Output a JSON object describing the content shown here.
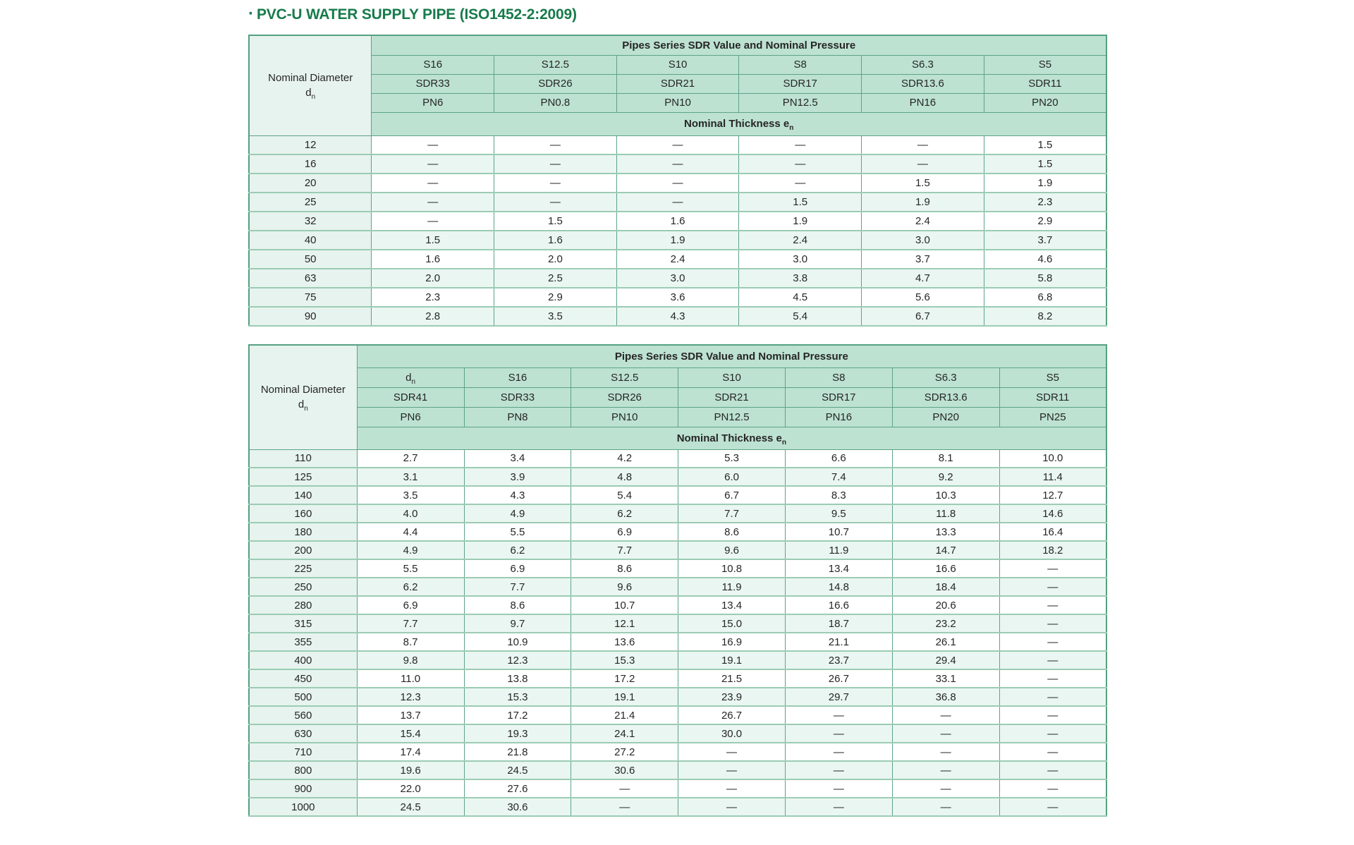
{
  "title": {
    "bullet": "·",
    "text": "PVC-U WATER SUPPLY PIPE (ISO1452-2:2009)"
  },
  "colors": {
    "title_green": "#177b4b",
    "header_bg": "#bde2d1",
    "left_col_bg": "#e7f3ee",
    "alt_row_bg": "#eaf6f1",
    "border_green": "#5ea389"
  },
  "tables": [
    {
      "name": "pipe-table-small-diameters",
      "span_header": "Pipes Series SDR Value and Nominal Pressure",
      "left_header": {
        "line1": "Nominal Diameter",
        "base": "d",
        "sub": "n"
      },
      "thickness_header": {
        "base": "Nominal Thickness e",
        "sub": "n"
      },
      "series": [
        "S16",
        "S12.5",
        "S10",
        "S8",
        "S6.3",
        "S5"
      ],
      "sdr": [
        "SDR33",
        "SDR26",
        "SDR21",
        "SDR17",
        "SDR13.6",
        "SDR11"
      ],
      "pn": [
        "PN6",
        "PN0.8",
        "PN10",
        "PN12.5",
        "PN16",
        "PN20"
      ],
      "rows": [
        {
          "d": "12",
          "v": [
            "—",
            "—",
            "—",
            "—",
            "—",
            "1.5"
          ]
        },
        {
          "d": "16",
          "v": [
            "—",
            "—",
            "—",
            "—",
            "—",
            "1.5"
          ]
        },
        {
          "d": "20",
          "v": [
            "—",
            "—",
            "—",
            "—",
            "1.5",
            "1.9"
          ]
        },
        {
          "d": "25",
          "v": [
            "—",
            "—",
            "—",
            "1.5",
            "1.9",
            "2.3"
          ]
        },
        {
          "d": "32",
          "v": [
            "—",
            "1.5",
            "1.6",
            "1.9",
            "2.4",
            "2.9"
          ]
        },
        {
          "d": "40",
          "v": [
            "1.5",
            "1.6",
            "1.9",
            "2.4",
            "3.0",
            "3.7"
          ]
        },
        {
          "d": "50",
          "v": [
            "1.6",
            "2.0",
            "2.4",
            "3.0",
            "3.7",
            "4.6"
          ]
        },
        {
          "d": "63",
          "v": [
            "2.0",
            "2.5",
            "3.0",
            "3.8",
            "4.7",
            "5.8"
          ]
        },
        {
          "d": "75",
          "v": [
            "2.3",
            "2.9",
            "3.6",
            "4.5",
            "5.6",
            "6.8"
          ]
        },
        {
          "d": "90",
          "v": [
            "2.8",
            "3.5",
            "4.3",
            "5.4",
            "6.7",
            "8.2"
          ]
        }
      ]
    },
    {
      "name": "pipe-table-large-diameters",
      "span_header": "Pipes Series SDR Value and Nominal Pressure",
      "left_header": {
        "line1": "Nominal Diameter",
        "base": "d",
        "sub": "n"
      },
      "thickness_header": {
        "base": "Nominal Thickness e",
        "sub": "n"
      },
      "series": [
        {
          "base": "d",
          "sub": "n"
        },
        "S16",
        "S12.5",
        "S10",
        "S8",
        "S6.3",
        "S5"
      ],
      "sdr": [
        "SDR41",
        "SDR33",
        "SDR26",
        "SDR21",
        "SDR17",
        "SDR13.6",
        "SDR11"
      ],
      "pn": [
        "PN6",
        "PN8",
        "PN10",
        "PN12.5",
        "PN16",
        "PN20",
        "PN25"
      ],
      "rows": [
        {
          "d": "110",
          "v": [
            "2.7",
            "3.4",
            "4.2",
            "5.3",
            "6.6",
            "8.1",
            "10.0"
          ]
        },
        {
          "d": "125",
          "v": [
            "3.1",
            "3.9",
            "4.8",
            "6.0",
            "7.4",
            "9.2",
            "11.4"
          ]
        },
        {
          "d": "140",
          "v": [
            "3.5",
            "4.3",
            "5.4",
            "6.7",
            "8.3",
            "10.3",
            "12.7"
          ]
        },
        {
          "d": "160",
          "v": [
            "4.0",
            "4.9",
            "6.2",
            "7.7",
            "9.5",
            "11.8",
            "14.6"
          ]
        },
        {
          "d": "180",
          "v": [
            "4.4",
            "5.5",
            "6.9",
            "8.6",
            "10.7",
            "13.3",
            "16.4"
          ]
        },
        {
          "d": "200",
          "v": [
            "4.9",
            "6.2",
            "7.7",
            "9.6",
            "11.9",
            "14.7",
            "18.2"
          ]
        },
        {
          "d": "225",
          "v": [
            "5.5",
            "6.9",
            "8.6",
            "10.8",
            "13.4",
            "16.6",
            "—"
          ]
        },
        {
          "d": "250",
          "v": [
            "6.2",
            "7.7",
            "9.6",
            "11.9",
            "14.8",
            "18.4",
            "—"
          ]
        },
        {
          "d": "280",
          "v": [
            "6.9",
            "8.6",
            "10.7",
            "13.4",
            "16.6",
            "20.6",
            "—"
          ]
        },
        {
          "d": "315",
          "v": [
            "7.7",
            "9.7",
            "12.1",
            "15.0",
            "18.7",
            "23.2",
            "—"
          ]
        },
        {
          "d": "355",
          "v": [
            "8.7",
            "10.9",
            "13.6",
            "16.9",
            "21.1",
            "26.1",
            "—"
          ]
        },
        {
          "d": "400",
          "v": [
            "9.8",
            "12.3",
            "15.3",
            "19.1",
            "23.7",
            "29.4",
            "—"
          ]
        },
        {
          "d": "450",
          "v": [
            "11.0",
            "13.8",
            "17.2",
            "21.5",
            "26.7",
            "33.1",
            "—"
          ]
        },
        {
          "d": "500",
          "v": [
            "12.3",
            "15.3",
            "19.1",
            "23.9",
            "29.7",
            "36.8",
            "—"
          ]
        },
        {
          "d": "560",
          "v": [
            "13.7",
            "17.2",
            "21.4",
            "26.7",
            "—",
            "—",
            "—"
          ]
        },
        {
          "d": "630",
          "v": [
            "15.4",
            "19.3",
            "24.1",
            "30.0",
            "—",
            "—",
            "—"
          ]
        },
        {
          "d": "710",
          "v": [
            "17.4",
            "21.8",
            "27.2",
            "—",
            "—",
            "—",
            "—"
          ]
        },
        {
          "d": "800",
          "v": [
            "19.6",
            "24.5",
            "30.6",
            "—",
            "—",
            "—",
            "—"
          ]
        },
        {
          "d": "900",
          "v": [
            "22.0",
            "27.6",
            "—",
            "—",
            "—",
            "—",
            "—"
          ]
        },
        {
          "d": "1000",
          "v": [
            "24.5",
            "30.6",
            "—",
            "—",
            "—",
            "—",
            "—"
          ]
        }
      ]
    }
  ]
}
